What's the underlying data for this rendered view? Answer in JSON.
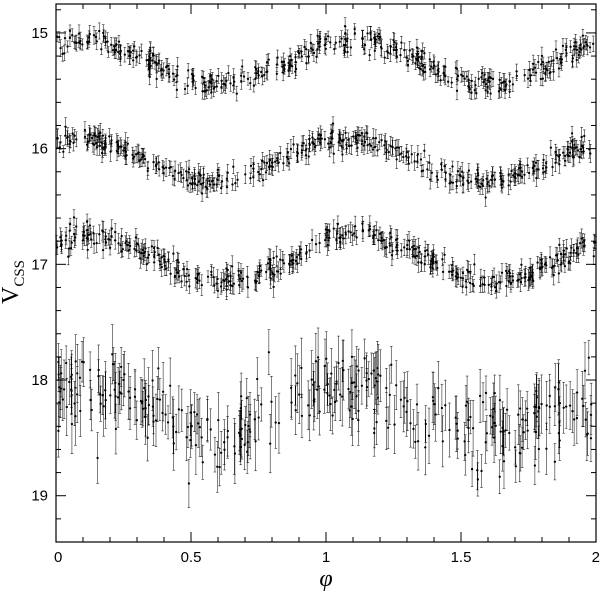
{
  "chart_data": {
    "type": "scatter",
    "title": "",
    "xlabel": "φ",
    "ylabel_main": "V",
    "ylabel_sub": "CSS",
    "xlim": [
      0,
      2
    ],
    "ylim": [
      19.4,
      14.75
    ],
    "y_inverted": true,
    "grid": false,
    "legend": "none",
    "xticks": [
      {
        "value": 0,
        "label": "0"
      },
      {
        "value": 0.5,
        "label": "0.5"
      },
      {
        "value": 1,
        "label": "1"
      },
      {
        "value": 1.5,
        "label": "1.5"
      },
      {
        "value": 2,
        "label": "2"
      }
    ],
    "yticks": [
      {
        "value": 15,
        "label": "15"
      },
      {
        "value": 16,
        "label": "16"
      },
      {
        "value": 17,
        "label": "17"
      },
      {
        "value": 18,
        "label": "18"
      },
      {
        "value": 19,
        "label": "19"
      }
    ],
    "marker_color": "#000000",
    "series": [
      {
        "mean_mag": 15.25,
        "amplitude": 0.19,
        "phase_max": 0.1,
        "scatter": 0.05,
        "error": 0.06,
        "n_points": 420
      },
      {
        "mean_mag": 16.1,
        "amplitude": 0.19,
        "phase_max": 0.08,
        "scatter": 0.05,
        "error": 0.065,
        "n_points": 420
      },
      {
        "mean_mag": 16.95,
        "amplitude": 0.2,
        "phase_max": 0.12,
        "scatter": 0.05,
        "error": 0.07,
        "n_points": 420
      },
      {
        "mean_mag": 18.25,
        "amplitude": 0.2,
        "phase_max": 0.1,
        "scatter": 0.18,
        "error": 0.2,
        "n_points": 340
      }
    ]
  }
}
